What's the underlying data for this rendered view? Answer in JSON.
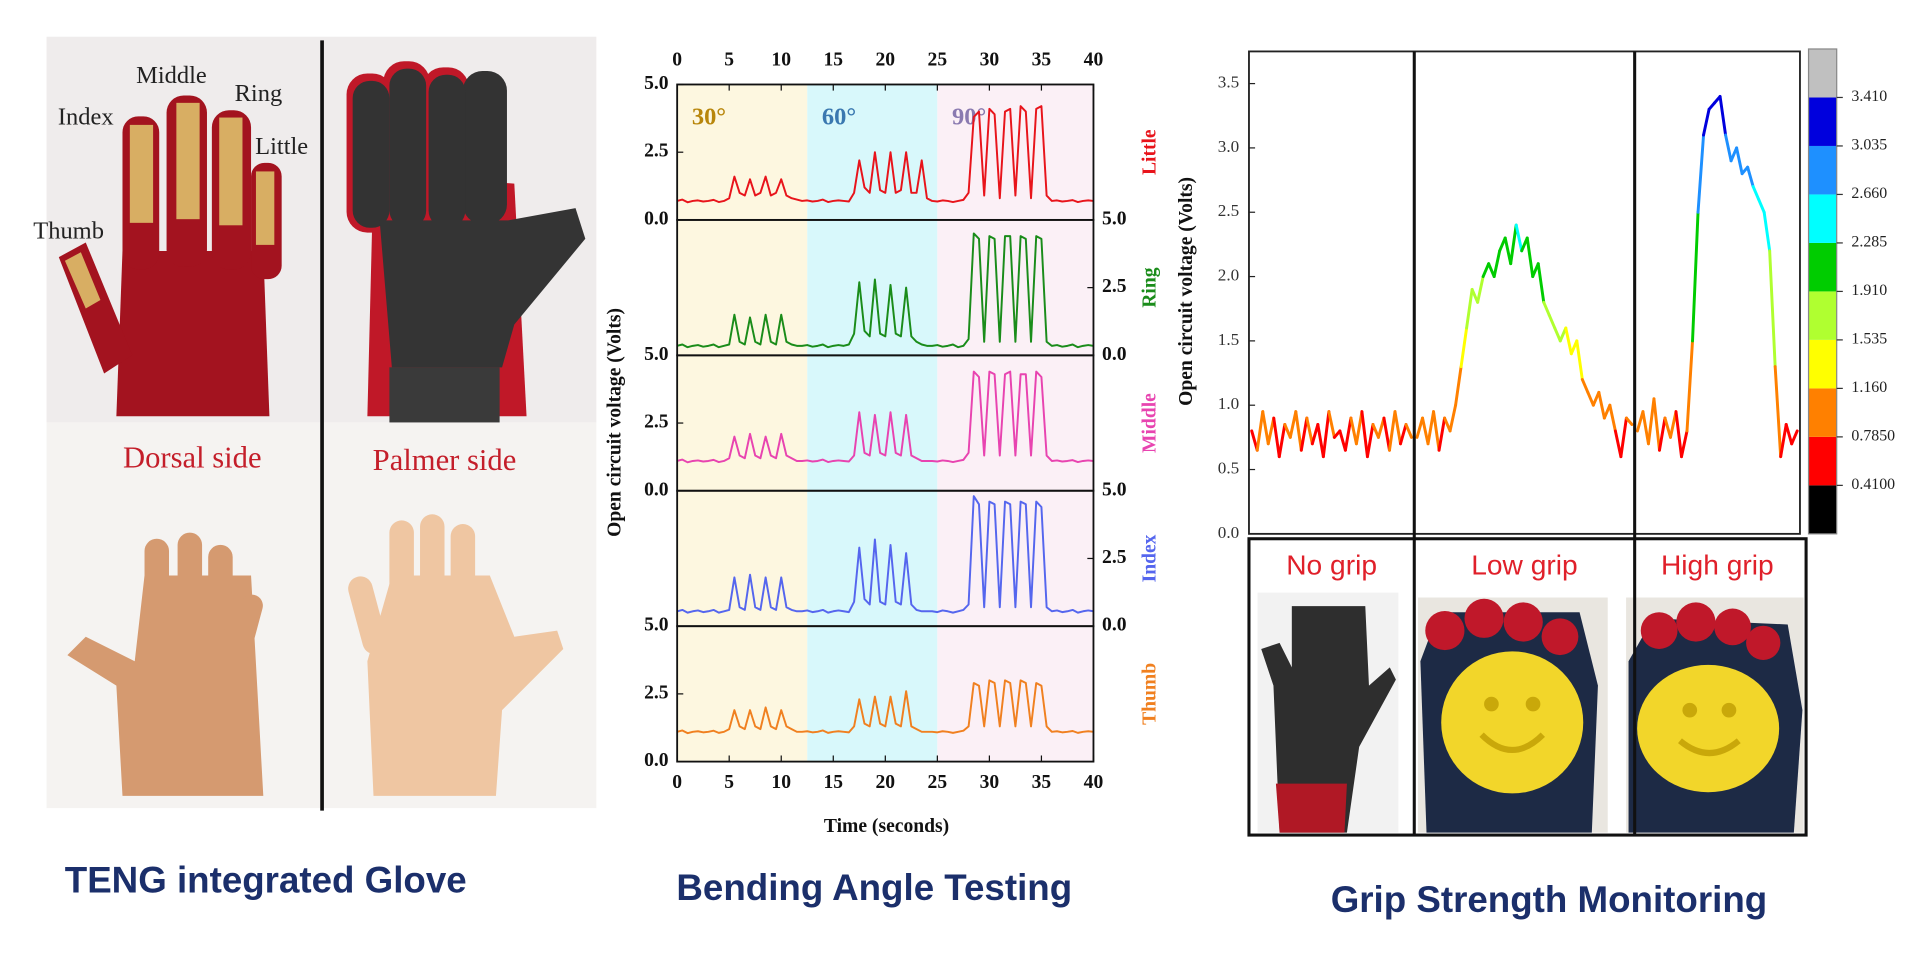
{
  "glove_panel": {
    "finger_labels": [
      "Index",
      "Middle",
      "Ring",
      "Little",
      "Thumb"
    ],
    "side_labels": [
      "Dorsal side",
      "Palmer side"
    ],
    "caption": "TENG integrated Glove"
  },
  "chart_data": [
    {
      "type": "line",
      "caption": "Bending Angle Testing",
      "xlabel": "Time (seconds)",
      "ylabel": "Open circuit voltage (Volts)",
      "xlim": [
        0,
        40
      ],
      "xticks": [
        0,
        5,
        10,
        15,
        20,
        25,
        30,
        35,
        40
      ],
      "x": [
        0,
        0.5,
        1,
        1.5,
        2,
        2.5,
        3,
        3.5,
        4,
        4.5,
        5,
        5.5,
        6,
        6.5,
        7,
        7.5,
        8,
        8.5,
        9,
        9.5,
        10,
        10.5,
        11,
        11.5,
        12,
        12.5,
        13,
        13.5,
        14,
        14.5,
        15,
        15.5,
        16,
        16.5,
        17,
        17.5,
        18,
        18.5,
        19,
        19.5,
        20,
        20.5,
        21,
        21.5,
        22,
        22.5,
        23,
        23.5,
        24,
        24.5,
        25,
        25.5,
        26,
        26.5,
        27,
        27.5,
        28,
        28.5,
        29,
        29.5,
        30,
        30.5,
        31,
        31.5,
        32,
        32.5,
        33,
        33.5,
        34,
        34.5,
        35,
        35.5,
        36,
        36.5,
        37,
        37.5,
        38,
        38.5,
        39,
        39.5,
        40
      ],
      "regions": [
        {
          "label": "30°",
          "range": [
            0,
            12.5
          ],
          "color": "#fdf7e0",
          "label_color": "#b8860b"
        },
        {
          "label": "60°",
          "range": [
            12.5,
            25
          ],
          "color": "#d8f8fb",
          "label_color": "#3a78b0"
        },
        {
          "label": "90°",
          "range": [
            25,
            40
          ],
          "color": "#fbf0f6",
          "label_color": "#8a7ab0"
        }
      ],
      "panels": [
        {
          "name": "Little",
          "color": "#e8141b",
          "tick_side": "left",
          "ylim": [
            0,
            5
          ],
          "yticks": [
            {
              "value": 0,
              "label": "0.0"
            },
            {
              "value": 2.5,
              "label": "2.5"
            },
            {
              "value": 5,
              "label": "5.0"
            }
          ],
          "values": [
            0.7,
            0.75,
            0.65,
            0.7,
            0.72,
            0.68,
            0.7,
            0.74,
            0.66,
            0.7,
            0.8,
            1.6,
            1.0,
            0.9,
            1.5,
            0.9,
            1.0,
            1.6,
            0.9,
            1.0,
            1.5,
            0.9,
            0.8,
            0.75,
            0.7,
            0.72,
            0.68,
            0.7,
            0.75,
            0.66,
            0.7,
            0.72,
            0.7,
            0.68,
            1.0,
            2.2,
            1.2,
            1.0,
            2.5,
            1.1,
            1.0,
            2.5,
            1.0,
            1.1,
            2.5,
            1.0,
            1.0,
            2.2,
            0.8,
            0.7,
            0.68,
            0.72,
            0.7,
            0.66,
            0.7,
            0.74,
            1.0,
            3.8,
            4.0,
            0.9,
            4.1,
            3.9,
            0.8,
            4.0,
            4.1,
            0.9,
            4.2,
            4.0,
            0.8,
            4.1,
            4.2,
            0.9,
            0.7,
            0.72,
            0.68,
            0.7,
            0.73,
            0.66,
            0.7,
            0.72,
            0.7
          ]
        },
        {
          "name": "Ring",
          "color": "#1a8c1a",
          "tick_side": "right",
          "ylim": [
            0,
            5
          ],
          "yticks": [
            {
              "value": 0,
              "label": "0.0"
            },
            {
              "value": 2.5,
              "label": "2.5"
            },
            {
              "value": 5,
              "label": "5.0"
            }
          ],
          "values": [
            0.35,
            0.4,
            0.3,
            0.35,
            0.38,
            0.32,
            0.35,
            0.4,
            0.3,
            0.35,
            0.4,
            1.5,
            0.5,
            0.4,
            1.4,
            0.5,
            0.4,
            1.5,
            0.5,
            0.4,
            1.5,
            0.5,
            0.4,
            0.35,
            0.35,
            0.38,
            0.32,
            0.35,
            0.4,
            0.3,
            0.35,
            0.38,
            0.35,
            0.4,
            0.8,
            2.7,
            0.9,
            0.7,
            2.8,
            0.8,
            0.7,
            2.6,
            0.8,
            0.7,
            2.5,
            0.7,
            0.5,
            0.4,
            0.35,
            0.35,
            0.38,
            0.32,
            0.35,
            0.4,
            0.3,
            0.35,
            0.6,
            4.5,
            4.3,
            0.5,
            4.4,
            4.3,
            0.5,
            4.4,
            4.4,
            0.5,
            4.4,
            4.3,
            0.5,
            4.4,
            4.3,
            0.5,
            0.35,
            0.38,
            0.32,
            0.35,
            0.4,
            0.3,
            0.35,
            0.38,
            0.35
          ]
        },
        {
          "name": "Middle",
          "color": "#e844b0",
          "tick_side": "left",
          "ylim": [
            0,
            5
          ],
          "yticks": [
            {
              "value": 0,
              "label": "0.0"
            },
            {
              "value": 2.5,
              "label": "2.5"
            },
            {
              "value": 5,
              "label": "5.0"
            }
          ],
          "values": [
            1.1,
            1.15,
            1.05,
            1.1,
            1.12,
            1.08,
            1.1,
            1.14,
            1.06,
            1.1,
            1.2,
            2.0,
            1.3,
            1.2,
            2.1,
            1.3,
            1.2,
            2.0,
            1.3,
            1.2,
            2.1,
            1.3,
            1.2,
            1.1,
            1.1,
            1.12,
            1.08,
            1.1,
            1.15,
            1.06,
            1.1,
            1.12,
            1.1,
            1.08,
            1.3,
            2.9,
            1.4,
            1.3,
            2.8,
            1.4,
            1.3,
            2.9,
            1.4,
            1.3,
            2.8,
            1.3,
            1.2,
            1.1,
            1.1,
            1.1,
            1.08,
            1.12,
            1.1,
            1.06,
            1.1,
            1.14,
            1.4,
            4.4,
            4.2,
            1.3,
            4.4,
            4.3,
            1.3,
            4.3,
            4.4,
            1.3,
            4.3,
            4.3,
            1.3,
            4.4,
            4.2,
            1.3,
            1.1,
            1.12,
            1.08,
            1.1,
            1.13,
            1.06,
            1.1,
            1.12,
            1.1
          ]
        },
        {
          "name": "Index",
          "color": "#5566ee",
          "tick_side": "right",
          "ylim": [
            0,
            5
          ],
          "yticks": [
            {
              "value": 0,
              "label": "0.0"
            },
            {
              "value": 2.5,
              "label": "2.5"
            },
            {
              "value": 5,
              "label": "5.0"
            }
          ],
          "values": [
            0.55,
            0.6,
            0.5,
            0.55,
            0.58,
            0.52,
            0.55,
            0.6,
            0.5,
            0.55,
            0.6,
            1.8,
            0.7,
            0.6,
            1.9,
            0.7,
            0.6,
            1.8,
            0.7,
            0.6,
            1.8,
            0.7,
            0.6,
            0.55,
            0.55,
            0.58,
            0.52,
            0.55,
            0.6,
            0.5,
            0.55,
            0.58,
            0.55,
            0.52,
            0.9,
            2.9,
            1.0,
            0.8,
            3.2,
            0.9,
            0.8,
            3.0,
            0.9,
            0.8,
            2.7,
            0.8,
            0.6,
            0.55,
            0.55,
            0.55,
            0.52,
            0.58,
            0.55,
            0.5,
            0.55,
            0.6,
            0.8,
            4.8,
            4.5,
            0.7,
            4.6,
            4.5,
            0.7,
            4.6,
            4.5,
            0.7,
            4.6,
            4.5,
            0.7,
            4.6,
            4.4,
            0.7,
            0.55,
            0.58,
            0.52,
            0.55,
            0.6,
            0.5,
            0.55,
            0.58,
            0.55
          ]
        },
        {
          "name": "Thumb",
          "color": "#f08020",
          "tick_side": "left",
          "ylim": [
            0,
            5
          ],
          "yticks": [
            {
              "value": 0,
              "label": "0.0"
            },
            {
              "value": 2.5,
              "label": "2.5"
            },
            {
              "value": 5,
              "label": "5.0"
            }
          ],
          "values": [
            1.1,
            1.15,
            1.05,
            1.1,
            1.12,
            1.08,
            1.1,
            1.14,
            1.06,
            1.1,
            1.2,
            1.9,
            1.3,
            1.2,
            1.9,
            1.3,
            1.2,
            2.0,
            1.3,
            1.2,
            1.9,
            1.3,
            1.2,
            1.1,
            1.1,
            1.12,
            1.08,
            1.1,
            1.15,
            1.06,
            1.1,
            1.12,
            1.1,
            1.08,
            1.3,
            2.3,
            1.4,
            1.3,
            2.4,
            1.4,
            1.3,
            2.4,
            1.4,
            1.3,
            2.6,
            1.3,
            1.2,
            1.1,
            1.1,
            1.1,
            1.08,
            1.12,
            1.1,
            1.06,
            1.1,
            1.14,
            1.3,
            2.9,
            2.8,
            1.3,
            3.0,
            2.9,
            1.3,
            3.0,
            2.9,
            1.3,
            3.0,
            2.9,
            1.3,
            2.9,
            2.8,
            1.3,
            1.1,
            1.12,
            1.08,
            1.1,
            1.13,
            1.06,
            1.1,
            1.12,
            1.1
          ]
        }
      ]
    },
    {
      "type": "colorline",
      "caption": "Grip Strength Monitoring",
      "ylabel": "Open circuit voltage (Volts)",
      "ylim": [
        0,
        3.75
      ],
      "yticks": [
        {
          "value": 0,
          "label": "0.0"
        },
        {
          "value": 0.5,
          "label": "0.5"
        },
        {
          "value": 1,
          "label": "1.0"
        },
        {
          "value": 1.5,
          "label": "1.5"
        },
        {
          "value": 2,
          "label": "2.0"
        },
        {
          "value": 2.5,
          "label": "2.5"
        },
        {
          "value": 3,
          "label": "3.0"
        },
        {
          "value": 3.5,
          "label": "3.5"
        }
      ],
      "segments": [
        {
          "label": "No grip",
          "values": [
            0.8,
            0.65,
            0.95,
            0.7,
            0.9,
            0.6,
            0.85,
            0.75,
            0.95,
            0.65,
            0.9,
            0.7,
            0.85,
            0.6,
            0.95,
            0.75,
            0.8,
            0.65,
            0.9,
            0.7,
            0.95,
            0.6,
            0.85,
            0.75,
            0.9,
            0.65,
            0.95,
            0.7,
            0.85,
            0.75
          ]
        },
        {
          "label": "Low grip",
          "values": [
            0.75,
            0.9,
            0.7,
            0.95,
            0.65,
            0.9,
            0.8,
            1.0,
            1.3,
            1.6,
            1.9,
            1.8,
            2.0,
            2.1,
            2.0,
            2.2,
            2.3,
            2.1,
            2.4,
            2.2,
            2.3,
            2.0,
            2.1,
            1.8,
            1.7,
            1.6,
            1.5,
            1.6,
            1.4,
            1.5,
            1.2,
            1.1,
            1.0,
            1.1,
            0.9,
            1.0,
            0.8,
            0.6,
            0.9,
            0.85
          ]
        },
        {
          "label": "High grip",
          "values": [
            0.8,
            0.95,
            0.7,
            1.05,
            0.65,
            0.9,
            0.75,
            0.95,
            0.6,
            0.8,
            1.5,
            2.5,
            3.1,
            3.3,
            3.35,
            3.4,
            3.1,
            2.9,
            3.0,
            2.8,
            2.85,
            2.7,
            2.6,
            2.5,
            2.2,
            1.3,
            0.6,
            0.85,
            0.7,
            0.8
          ]
        }
      ],
      "colorbar": {
        "lim": [
          0.035,
          3.785
        ],
        "colors": [
          "#000000",
          "#ff0000",
          "#ff8000",
          "#ffff00",
          "#b0ff30",
          "#00cc00",
          "#00ffff",
          "#1e90ff",
          "#0000dd",
          "#c0c0c0"
        ],
        "ticks": [
          {
            "value": 0.41,
            "label": "0.4100"
          },
          {
            "value": 0.785,
            "label": "0.7850"
          },
          {
            "value": 1.16,
            "label": "1.160"
          },
          {
            "value": 1.535,
            "label": "1.535"
          },
          {
            "value": 1.91,
            "label": "1.910"
          },
          {
            "value": 2.285,
            "label": "2.285"
          },
          {
            "value": 2.66,
            "label": "2.660"
          },
          {
            "value": 3.035,
            "label": "3.035"
          },
          {
            "value": 3.41,
            "label": "3.410"
          }
        ]
      }
    }
  ]
}
